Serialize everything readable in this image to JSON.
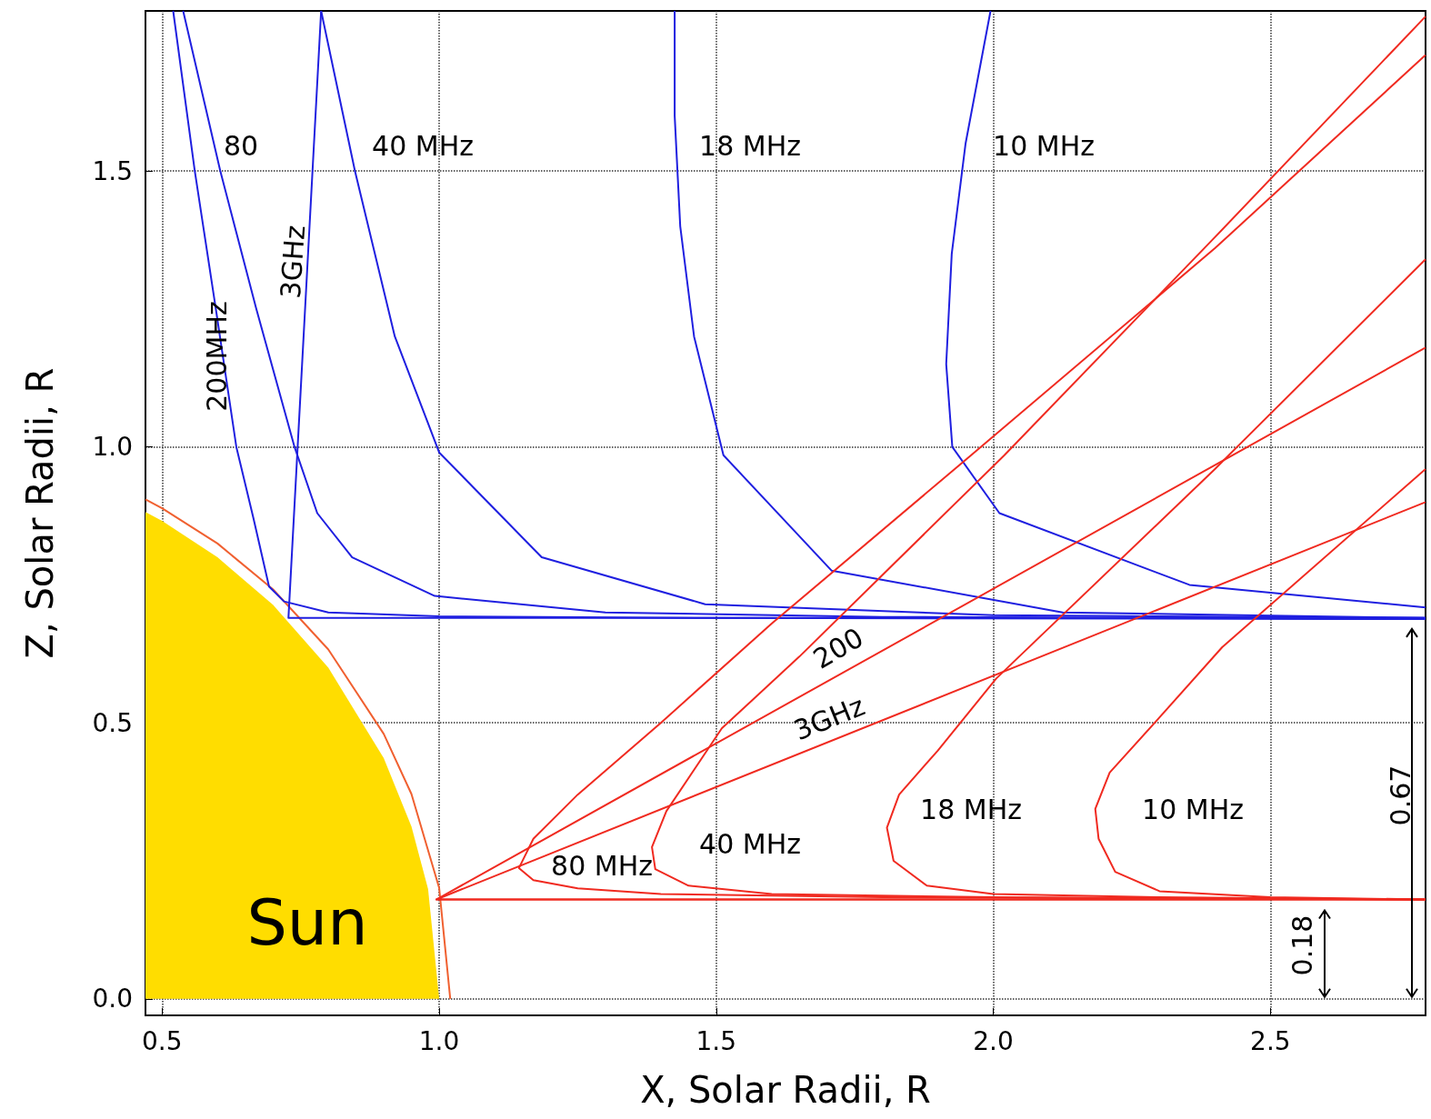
{
  "chart_data": {
    "type": "line",
    "xlabel": "X, Solar Radii, R",
    "ylabel": "Z, Solar Radii, R",
    "xlim": [
      0.47,
      2.78
    ],
    "ylim": [
      -0.03,
      1.79
    ],
    "xticks": [
      {
        "value": 0.5,
        "label": "0.5"
      },
      {
        "value": 1,
        "label": "1.0"
      },
      {
        "value": 1.5,
        "label": "1.5"
      },
      {
        "value": 2,
        "label": "2.0"
      },
      {
        "value": 2.5,
        "label": "2.5"
      }
    ],
    "yticks": [
      {
        "value": 0,
        "label": "0.0"
      },
      {
        "value": 0.5,
        "label": "0.5"
      },
      {
        "value": 1,
        "label": "1.0"
      },
      {
        "value": 1.5,
        "label": "1.5"
      }
    ],
    "grid": true,
    "marker": "none",
    "line_style": "solid",
    "series": [
      {
        "type": "area",
        "color": "#ffdd00",
        "x": [
          0.47,
          0.5,
          0.6,
          0.7,
          0.8,
          0.9,
          0.95,
          0.98,
          1.0
        ],
        "values": [
          0.882,
          0.866,
          0.8,
          0.714,
          0.6,
          0.436,
          0.312,
          0.199,
          0
        ]
      },
      {
        "color": "#f06030",
        "x": [
          0.47,
          0.5,
          0.6,
          0.7,
          0.8,
          0.9,
          0.95,
          1.0,
          1.02
        ],
        "values": [
          0.905,
          0.889,
          0.825,
          0.742,
          0.633,
          0.48,
          0.371,
          0.201,
          0
        ]
      },
      {
        "color": "#1f1fe0",
        "x": [
          2.78,
          1.5,
          1.0,
          0.8,
          0.72,
          0.693,
          0.665,
          0.634,
          0.597,
          0.559,
          0.52
        ],
        "values": [
          0.688,
          0.69,
          0.693,
          0.7,
          0.72,
          0.747,
          0.87,
          1.0,
          1.25,
          1.5,
          1.79
        ]
      },
      {
        "color": "#1f1fe0",
        "x": [
          2.78,
          1.8,
          1.3,
          0.992,
          0.843,
          0.78,
          0.739,
          0.67,
          0.605,
          0.538
        ],
        "values": [
          0.688,
          0.692,
          0.7,
          0.73,
          0.8,
          0.88,
          1.0,
          1.25,
          1.5,
          1.79
        ]
      },
      {
        "color": "#1f1fe0",
        "x": [
          2.78,
          0.728,
          0.787
        ],
        "values": [
          0.69,
          0.69,
          1.79
        ]
      },
      {
        "color": "#1f1fe0",
        "x": [
          2.78,
          2.0,
          1.48,
          1.185,
          1.0,
          0.92,
          0.848,
          0.787
        ],
        "values": [
          0.69,
          0.695,
          0.715,
          0.8,
          0.99,
          1.2,
          1.5,
          1.79
        ]
      },
      {
        "color": "#1f1fe0",
        "x": [
          2.78,
          2.125,
          1.708,
          1.513,
          1.46,
          1.435,
          1.425,
          1.425
        ],
        "values": [
          0.69,
          0.7,
          0.776,
          0.985,
          1.2,
          1.4,
          1.6,
          1.79
        ]
      },
      {
        "color": "#1f1fe0",
        "x": [
          2.78,
          2.354,
          2.011,
          1.926,
          1.915,
          1.925,
          1.95,
          1.995
        ],
        "values": [
          0.709,
          0.75,
          0.88,
          1.0,
          1.15,
          1.35,
          1.55,
          1.79
        ]
      },
      {
        "color": "#f02a20",
        "x": [
          2.78,
          1.8,
          1.4,
          1.25,
          1.17,
          1.144,
          1.17,
          1.25,
          1.4,
          1.6,
          1.96,
          2.4,
          2.78
        ],
        "values": [
          0.18,
          0.184,
          0.19,
          0.2,
          0.215,
          0.237,
          0.29,
          0.37,
          0.5,
          0.68,
          0.985,
          1.36,
          1.71
        ]
      },
      {
        "color": "#f02a20",
        "x": [
          2.78,
          2.0,
          1.6,
          1.45,
          1.39,
          1.384,
          1.41,
          1.51,
          1.65,
          2.02,
          2.4,
          2.78
        ],
        "values": [
          0.18,
          0.184,
          0.19,
          0.205,
          0.235,
          0.275,
          0.34,
          0.49,
          0.62,
          0.985,
          1.38,
          1.78
        ]
      },
      {
        "color": "#f02a20",
        "x": [
          2.78,
          2.3,
          2.0,
          1.88,
          1.82,
          1.808,
          1.83,
          1.9,
          2.005,
          2.4,
          2.78
        ],
        "values": [
          0.18,
          0.184,
          0.19,
          0.205,
          0.25,
          0.31,
          0.37,
          0.45,
          0.58,
          0.96,
          1.34
        ]
      },
      {
        "color": "#f02a20",
        "x": [
          2.78,
          2.5,
          2.3,
          2.22,
          2.19,
          2.184,
          2.21,
          2.3,
          2.413,
          2.78
        ],
        "values": [
          0.18,
          0.184,
          0.195,
          0.23,
          0.29,
          0.344,
          0.41,
          0.51,
          0.637,
          0.96
        ]
      },
      {
        "color": "#f02a20",
        "x": [
          2.78,
          0.995,
          2.78
        ],
        "values": [
          0.18,
          0.18,
          1.18
        ]
      },
      {
        "color": "#f02a20",
        "x": [
          2.78,
          0.995,
          2.78
        ],
        "values": [
          0.18,
          0.18,
          0.9
        ]
      }
    ],
    "annotations": [
      "80",
      "40 MHz",
      "18 MHz",
      "10 MHz",
      "200MHz",
      "3GHz",
      "200",
      "3GHz",
      "80 MHz",
      "40 MHz",
      "18 MHz",
      "10 MHz",
      "Sun",
      "0.67",
      "0.18"
    ]
  }
}
